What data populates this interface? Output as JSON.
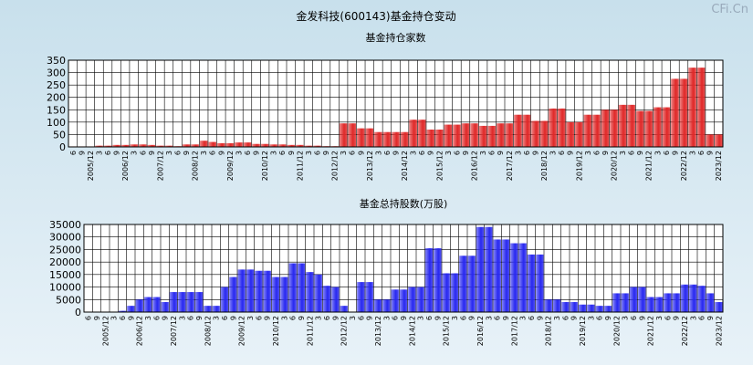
{
  "title": "金发科技(600143)基金持仓变动",
  "watermark": "CFi.Cn",
  "chart_data": [
    {
      "type": "bar",
      "title": "基金持仓家数",
      "color": "#e02828",
      "categories": [
        "6",
        "9",
        "2005/12",
        "3",
        "6",
        "9",
        "2006/12",
        "3",
        "6",
        "9",
        "2007/12",
        "3",
        "6",
        "9",
        "2008/12",
        "3",
        "6",
        "9",
        "2009/12",
        "3",
        "6",
        "9",
        "2010/12",
        "3",
        "6",
        "9",
        "2011/12",
        "3",
        "6",
        "9",
        "2012/12",
        "3",
        "6",
        "9",
        "2013/12",
        "3",
        "6",
        "9",
        "2014/12",
        "3",
        "6",
        "9",
        "2015/12",
        "3",
        "6",
        "9",
        "2016/12",
        "3",
        "6",
        "9",
        "2017/12",
        "3",
        "6",
        "9",
        "2018/12",
        "3",
        "6",
        "9",
        "2019/12",
        "3",
        "6",
        "9",
        "2020/12",
        "3",
        "6",
        "9",
        "2021/12",
        "3",
        "6",
        "9",
        "2022/12",
        "3",
        "6",
        "9",
        "2023/12"
      ],
      "values": [
        2,
        2,
        2,
        5,
        5,
        8,
        8,
        10,
        10,
        8,
        5,
        5,
        3,
        10,
        10,
        25,
        20,
        15,
        15,
        18,
        18,
        12,
        12,
        10,
        10,
        8,
        8,
        5,
        5,
        3,
        3,
        95,
        95,
        75,
        75,
        60,
        60,
        60,
        60,
        110,
        110,
        70,
        70,
        90,
        90,
        95,
        95,
        85,
        85,
        95,
        95,
        130,
        130,
        105,
        105,
        155,
        155,
        100,
        100,
        130,
        130,
        150,
        150,
        170,
        170,
        145,
        145,
        160,
        160,
        275,
        275,
        320,
        320,
        50,
        50
      ],
      "ylim": [
        0,
        350
      ],
      "yticks": [
        0,
        50,
        100,
        150,
        200,
        250,
        300,
        350
      ],
      "grid": true
    },
    {
      "type": "bar",
      "title": "基金总持股数(万股)",
      "color": "#2828f0",
      "categories": [
        "6",
        "9",
        "2005/12",
        "3",
        "6",
        "9",
        "2006/12",
        "3",
        "6",
        "9",
        "2007/12",
        "3",
        "6",
        "9",
        "2008/12",
        "3",
        "6",
        "9",
        "2009/12",
        "3",
        "6",
        "9",
        "2010/12",
        "3",
        "6",
        "9",
        "2011/12",
        "3",
        "6",
        "9",
        "2012/12",
        "3",
        "6",
        "9",
        "2013/12",
        "3",
        "6",
        "9",
        "2014/12",
        "3",
        "6",
        "9",
        "2015/12",
        "3",
        "6",
        "9",
        "2016/12",
        "3",
        "6",
        "9",
        "2017/12",
        "3",
        "6",
        "9",
        "2018/12",
        "3",
        "6",
        "9",
        "2019/12",
        "3",
        "6",
        "9",
        "2020/12",
        "3",
        "6",
        "9",
        "2021/12",
        "3",
        "6",
        "9",
        "2022/12",
        "3",
        "6",
        "9",
        "2023/12"
      ],
      "values": [
        0,
        0,
        0,
        0,
        500,
        2500,
        5000,
        6000,
        6000,
        4000,
        8000,
        8000,
        8000,
        8000,
        2500,
        2500,
        10000,
        14000,
        17000,
        17000,
        16500,
        16500,
        14000,
        14000,
        19500,
        19500,
        16000,
        15000,
        10500,
        10000,
        2500,
        0,
        12000,
        12000,
        5000,
        5000,
        9000,
        9000,
        10000,
        10000,
        25500,
        25500,
        15500,
        15500,
        22500,
        22500,
        34000,
        34000,
        29000,
        29000,
        27500,
        27500,
        23000,
        23000,
        5000,
        5000,
        4000,
        4000,
        3000,
        3000,
        2500,
        2500,
        7500,
        7500,
        10000,
        10000,
        6000,
        6000,
        7500,
        7500,
        11000,
        11000,
        10500,
        7500,
        4000
      ],
      "ylim": [
        0,
        35000
      ],
      "yticks": [
        0,
        5000,
        10000,
        15000,
        20000,
        25000,
        30000,
        35000
      ],
      "grid": true
    }
  ]
}
